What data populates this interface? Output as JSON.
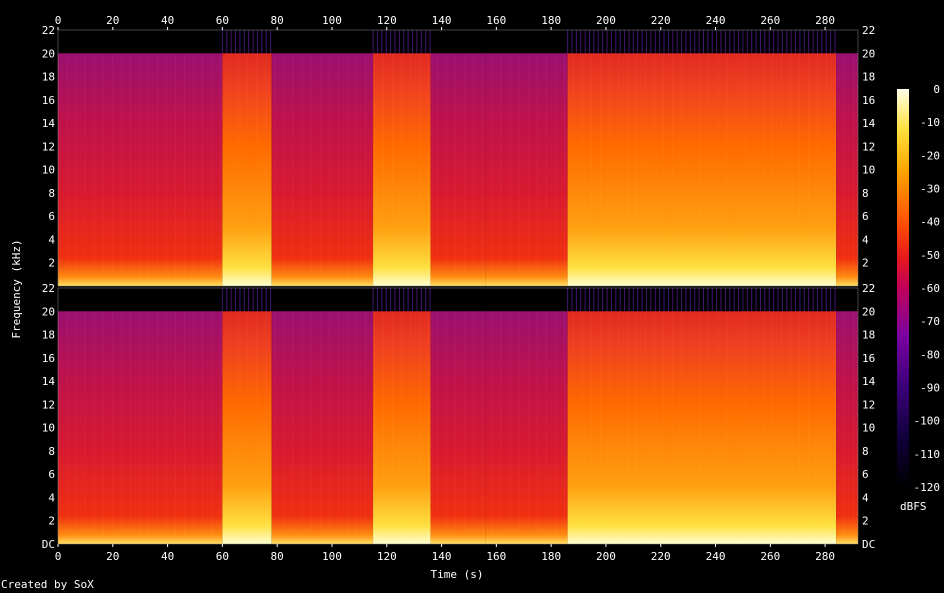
{
  "chart_data": {
    "type": "heatmap",
    "title": "",
    "xlabel": "Time (s)",
    "ylabel": "Frequency (kHz)",
    "xlim": [
      0,
      292
    ],
    "ylim": [
      0,
      22
    ],
    "x_ticks": [
      "0",
      "20",
      "40",
      "60",
      "80",
      "100",
      "120",
      "140",
      "160",
      "180",
      "200",
      "220",
      "240",
      "260",
      "280"
    ],
    "y_ticks_bottom": [
      "DC",
      "2",
      "4",
      "6",
      "8",
      "10",
      "12",
      "14",
      "16",
      "18",
      "20",
      "22"
    ],
    "y_ticks_top": [
      "2",
      "4",
      "6",
      "8",
      "10",
      "12",
      "14",
      "16",
      "18",
      "20",
      "22"
    ],
    "channels": 2,
    "colorbar": {
      "label": "dBFS",
      "range": [
        -120,
        0
      ],
      "ticks": [
        "-120",
        "-110",
        "-100",
        "-90",
        "-80",
        "-70",
        "-60",
        "-50",
        "-40",
        "-30",
        "-20",
        "-10",
        "0"
      ]
    },
    "segments": [
      {
        "start": 0,
        "end": 60,
        "level": 0.45
      },
      {
        "start": 60,
        "end": 78,
        "level": 0.78
      },
      {
        "start": 78,
        "end": 115,
        "level": 0.47
      },
      {
        "start": 115,
        "end": 136,
        "level": 0.8
      },
      {
        "start": 136,
        "end": 156,
        "level": 0.52
      },
      {
        "start": 156,
        "end": 186,
        "level": 0.48
      },
      {
        "start": 186,
        "end": 284,
        "level": 0.84
      },
      {
        "start": 284,
        "end": 292,
        "level": 0.4
      }
    ],
    "cutoff_khz": 20
  },
  "credit": "Created by SoX"
}
